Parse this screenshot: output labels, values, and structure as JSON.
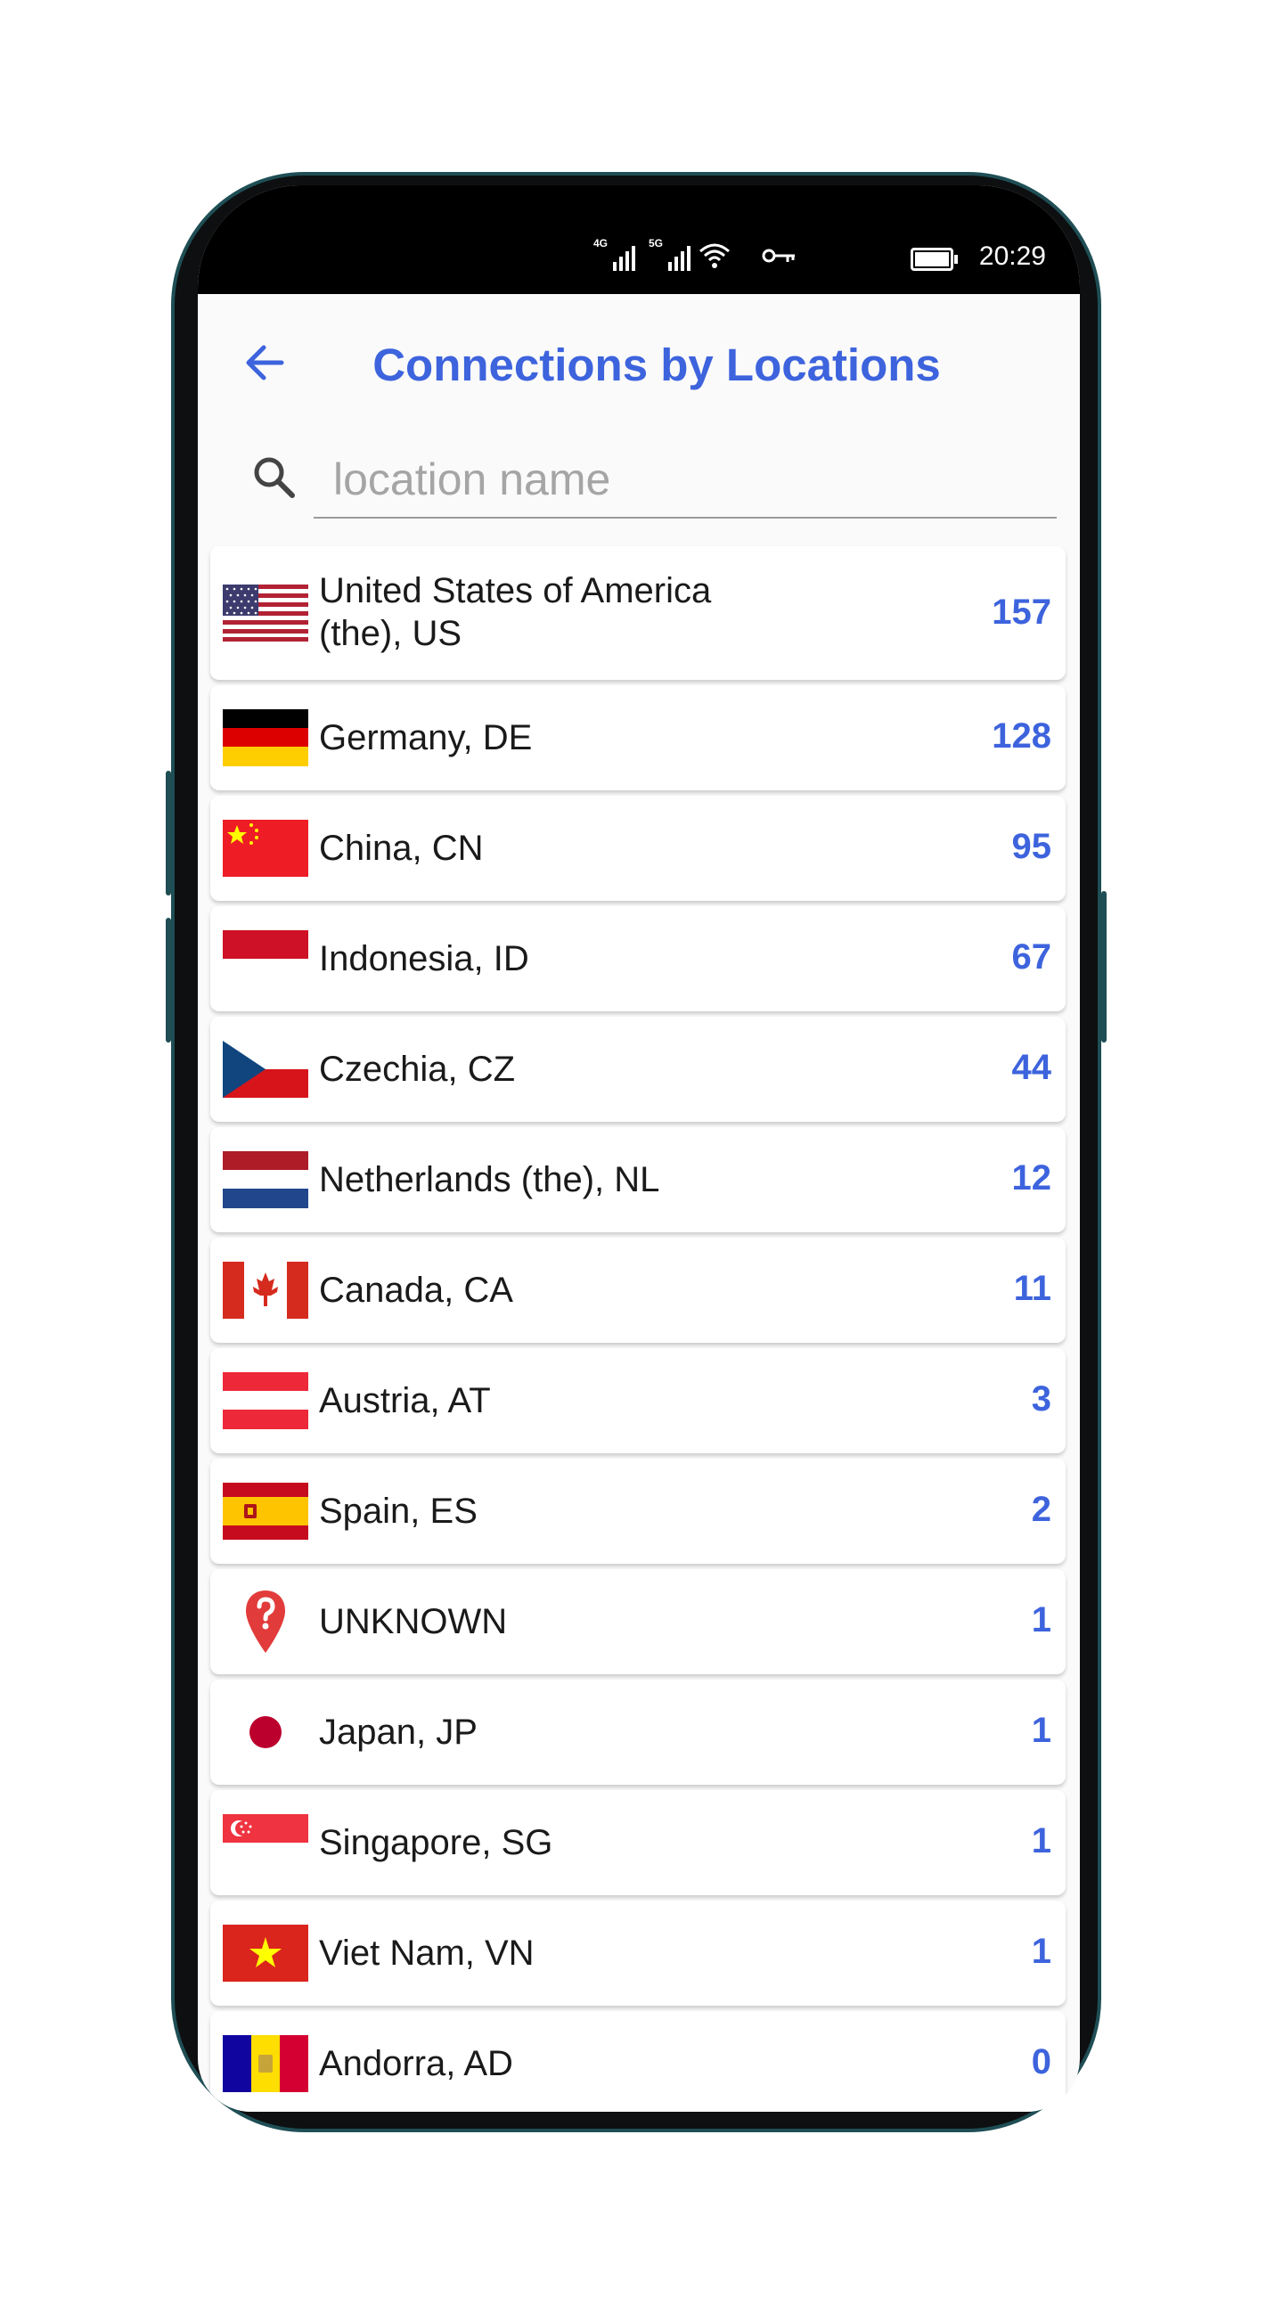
{
  "status_bar": {
    "time": "20:29",
    "network_1": "4G",
    "network_2": "5G"
  },
  "header": {
    "title": "Connections by Locations"
  },
  "search": {
    "placeholder": "location name"
  },
  "colors": {
    "accent": "#3d63dd",
    "text": "#1a1a1a"
  },
  "locations": [
    {
      "name_line1": "United States of America",
      "name_line2": "(the), US",
      "count": "157",
      "flag": "us-flag-icon"
    },
    {
      "name": "Germany, DE",
      "count": "128",
      "flag": "germany-flag-icon"
    },
    {
      "name": "China, CN",
      "count": "95",
      "flag": "china-flag-icon"
    },
    {
      "name": "Indonesia, ID",
      "count": "67",
      "flag": "indonesia-flag-icon"
    },
    {
      "name": "Czechia, CZ",
      "count": "44",
      "flag": "czechia-flag-icon"
    },
    {
      "name": "Netherlands (the), NL",
      "count": "12",
      "flag": "netherlands-flag-icon"
    },
    {
      "name": "Canada, CA",
      "count": "11",
      "flag": "canada-flag-icon"
    },
    {
      "name": "Austria, AT",
      "count": "3",
      "flag": "austria-flag-icon"
    },
    {
      "name": "Spain, ES",
      "count": "2",
      "flag": "spain-flag-icon"
    },
    {
      "name": "UNKNOWN",
      "count": "1",
      "flag": "unknown-location-icon"
    },
    {
      "name": "Japan, JP",
      "count": "1",
      "flag": "japan-flag-icon"
    },
    {
      "name": "Singapore, SG",
      "count": "1",
      "flag": "singapore-flag-icon"
    },
    {
      "name": "Viet Nam, VN",
      "count": "1",
      "flag": "vietnam-flag-icon"
    },
    {
      "name": "Andorra, AD",
      "count": "0",
      "flag": "andorra-flag-icon"
    }
  ]
}
